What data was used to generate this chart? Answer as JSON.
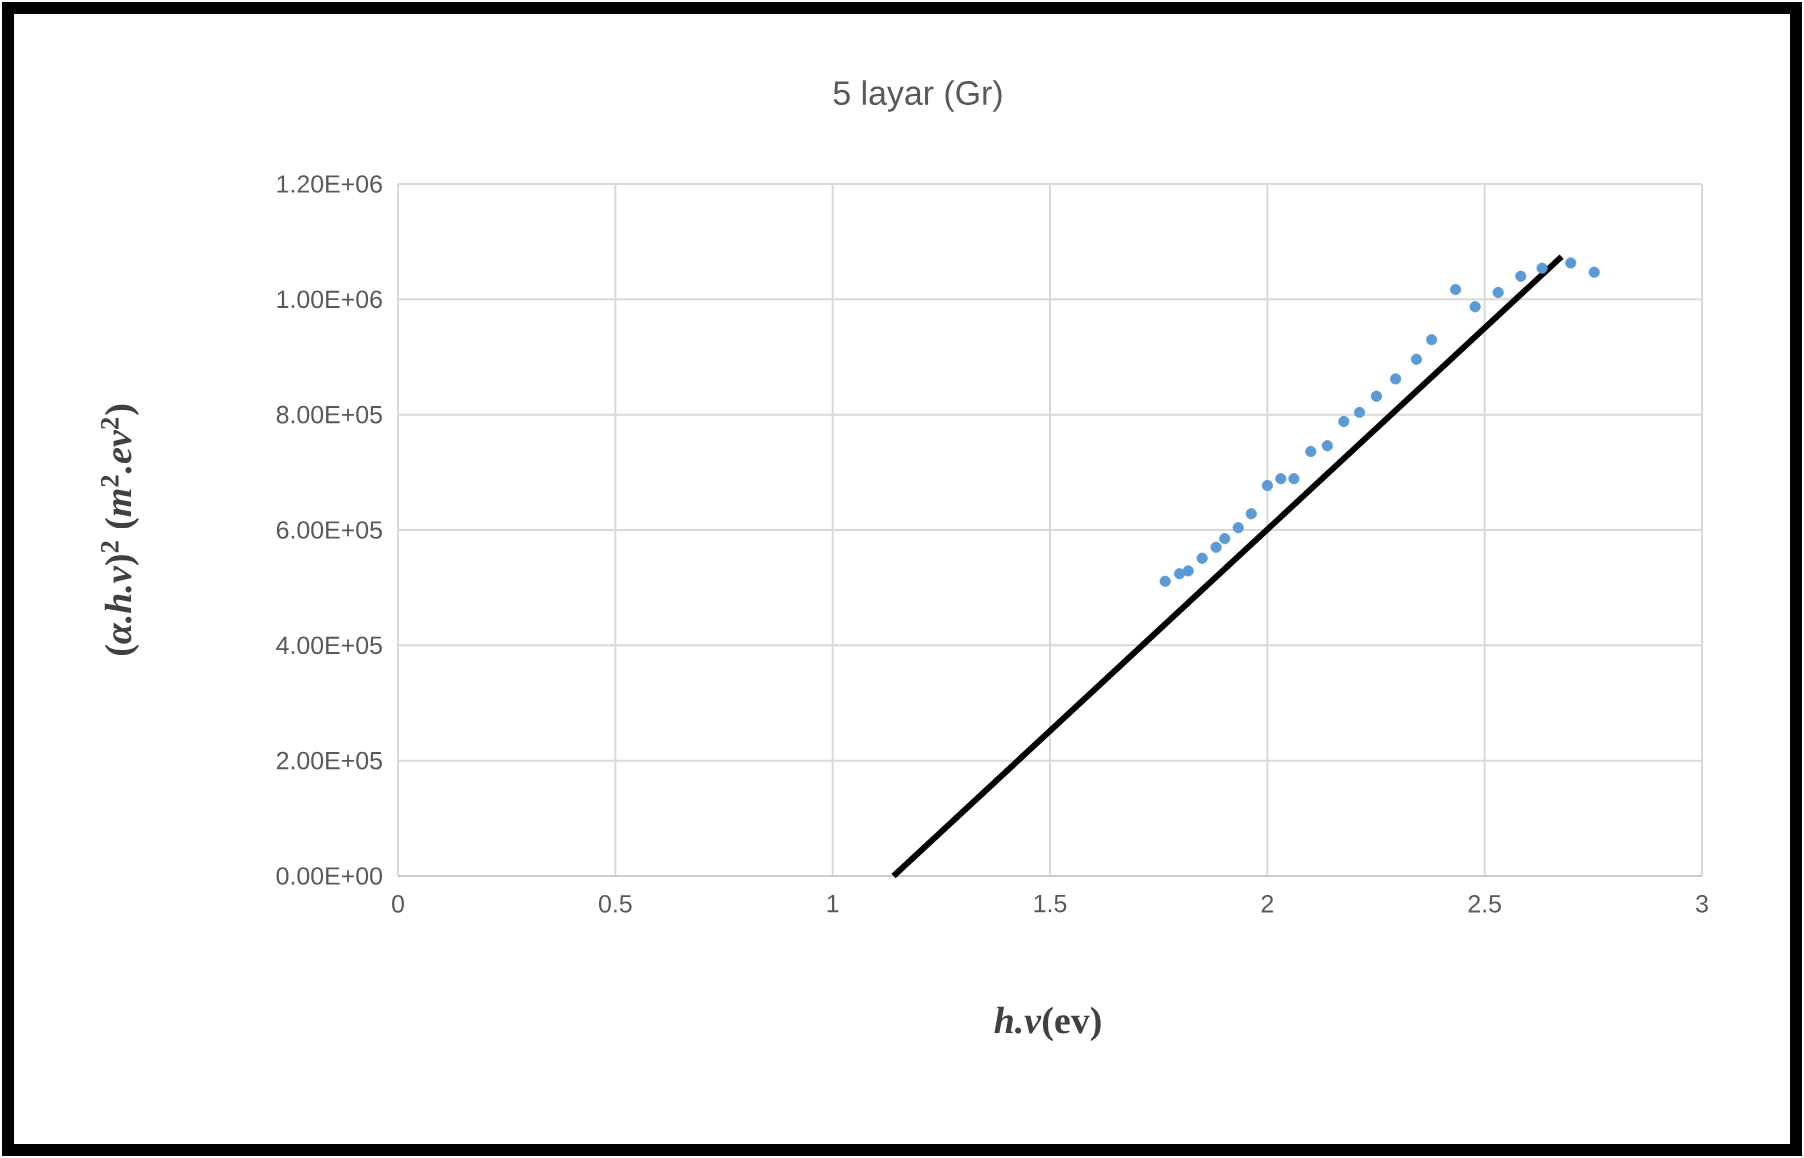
{
  "chart_data": {
    "type": "scatter",
    "title": "5 layar (Gr)",
    "xlabel": "*h.v*(ev)",
    "ylabel": "(*α.h.v*)$^{2}$ (*m*$^{2}$*.ev*$^{2}$)",
    "xlim": [
      0,
      3
    ],
    "xticks": [
      0,
      0.5,
      1,
      1.5,
      2,
      2.5,
      3
    ],
    "ylim": [
      0,
      1200000
    ],
    "yticks": [
      {
        "value": 0,
        "label": "0.00E+00"
      },
      {
        "value": 200000,
        "label": "2.00E+05"
      },
      {
        "value": 400000,
        "label": "4.00E+05"
      },
      {
        "value": 600000,
        "label": "6.00E+05"
      },
      {
        "value": 800000,
        "label": "8.00E+05"
      },
      {
        "value": 1000000,
        "label": "1.00E+06"
      },
      {
        "value": 1200000,
        "label": "1.20E+06"
      }
    ],
    "grid": true,
    "series": [
      {
        "color": "#5b9bd5",
        "marker": "circle",
        "x": [
          1.765,
          1.798,
          1.818,
          1.85,
          1.882,
          1.902,
          1.933,
          1.963,
          2.0,
          2.031,
          2.061,
          2.1,
          2.138,
          2.176,
          2.212,
          2.251,
          2.295,
          2.343,
          2.378,
          2.433,
          2.478,
          2.531,
          2.583,
          2.632,
          2.698,
          2.752
        ],
        "values": [
          511000,
          524000,
          529000,
          551000,
          570000,
          585000,
          604000,
          628000,
          677000,
          689000,
          689000,
          736000,
          746000,
          788000,
          804000,
          832000,
          862000,
          896000,
          930000,
          1017000,
          987000,
          1012000,
          1040000,
          1054000,
          1063000,
          1047000
        ]
      },
      {
        "type": "line",
        "color": "#000000",
        "line_style": "solid",
        "marker": "none",
        "x": [
          1.14,
          2.677
        ],
        "values": [
          0,
          1074000
        ]
      }
    ]
  }
}
